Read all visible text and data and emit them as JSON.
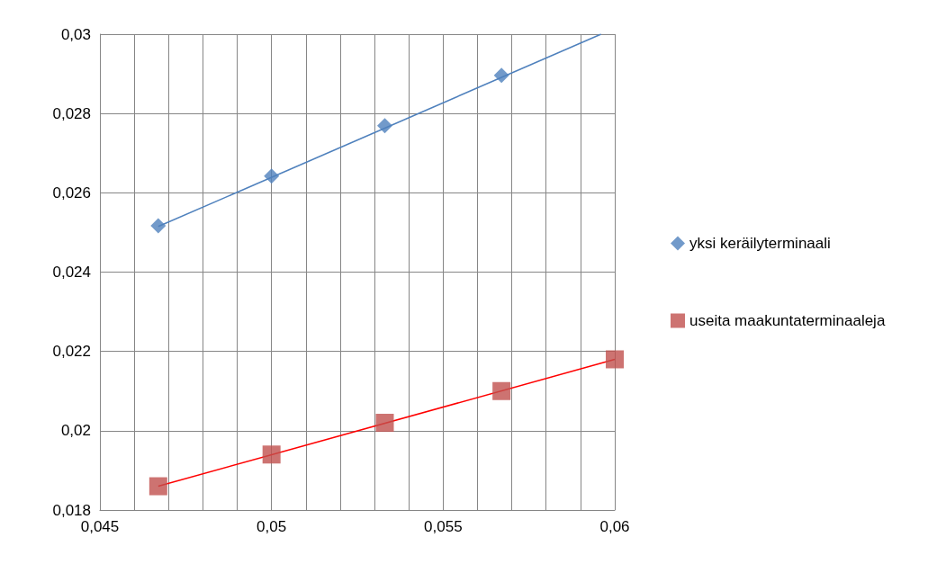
{
  "chart_data": {
    "type": "scatter",
    "xlim": [
      0.045,
      0.06
    ],
    "ylim": [
      0.018,
      0.03
    ],
    "xticks": [
      {
        "value": 0.045,
        "label": "0,045"
      },
      {
        "value": 0.046,
        "label": null
      },
      {
        "value": 0.047,
        "label": null
      },
      {
        "value": 0.048,
        "label": null
      },
      {
        "value": 0.049,
        "label": null
      },
      {
        "value": 0.05,
        "label": "0,05"
      },
      {
        "value": 0.051,
        "label": null
      },
      {
        "value": 0.052,
        "label": null
      },
      {
        "value": 0.053,
        "label": null
      },
      {
        "value": 0.054,
        "label": null
      },
      {
        "value": 0.055,
        "label": "0,055"
      },
      {
        "value": 0.056,
        "label": null
      },
      {
        "value": 0.057,
        "label": null
      },
      {
        "value": 0.058,
        "label": null
      },
      {
        "value": 0.059,
        "label": null
      },
      {
        "value": 0.06,
        "label": "0,06"
      }
    ],
    "yticks": [
      {
        "value": 0.018,
        "label": "0,018"
      },
      {
        "value": 0.02,
        "label": "0,02"
      },
      {
        "value": 0.022,
        "label": "0,022"
      },
      {
        "value": 0.024,
        "label": "0,024"
      },
      {
        "value": 0.026,
        "label": "0,026"
      },
      {
        "value": 0.028,
        "label": "0,028"
      },
      {
        "value": 0.03,
        "label": "0,03"
      }
    ],
    "grid": true,
    "legend": "right",
    "series": [
      {
        "name": "yksi keräilyterminaali",
        "color": "#4f81bd",
        "marker": "diamond",
        "x": [
          0.0467,
          0.05,
          0.0533,
          0.0567
        ],
        "values": [
          0.02517,
          0.02642,
          0.02769,
          0.02896
        ]
      },
      {
        "name": "useita maakuntaterminaaleja",
        "color": "#c0504d",
        "marker": "square",
        "x": [
          0.0467,
          0.05,
          0.0533,
          0.0567,
          0.06
        ],
        "values": [
          0.0186,
          0.0194,
          0.0202,
          0.021,
          0.0218
        ]
      },
      {
        "type": "line",
        "color": "#4f81bd",
        "marker": "none",
        "x": [
          0.0467,
          0.0596
        ],
        "values": [
          0.02515,
          0.03
        ]
      },
      {
        "type": "line",
        "color": "#ff0000",
        "marker": "none",
        "x": [
          0.0467,
          0.06
        ],
        "values": [
          0.0186,
          0.0218
        ]
      }
    ]
  }
}
